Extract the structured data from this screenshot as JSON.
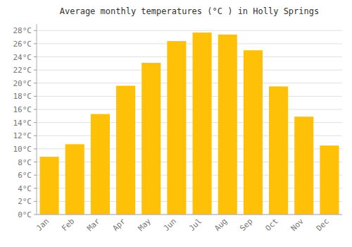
{
  "chart_data": {
    "type": "bar",
    "title": "Average monthly temperatures (°C ) in Holly Springs",
    "categories": [
      "Jan",
      "Feb",
      "Mar",
      "Apr",
      "May",
      "Jun",
      "Jul",
      "Aug",
      "Sep",
      "Oct",
      "Nov",
      "Dec"
    ],
    "values": [
      8.8,
      10.7,
      15.3,
      19.6,
      23.1,
      26.4,
      27.7,
      27.4,
      25.0,
      19.5,
      14.9,
      10.5
    ],
    "color": "#FFC107",
    "ylim": [
      0,
      29
    ],
    "yticks": [
      {
        "value": 0,
        "label": "0°C"
      },
      {
        "value": 2,
        "label": "2°C"
      },
      {
        "value": 4,
        "label": "4°C"
      },
      {
        "value": 6,
        "label": "6°C"
      },
      {
        "value": 8,
        "label": "8°C"
      },
      {
        "value": 10,
        "label": "10°C"
      },
      {
        "value": 12,
        "label": "12°C"
      },
      {
        "value": 14,
        "label": "14°C"
      },
      {
        "value": 16,
        "label": "16°C"
      },
      {
        "value": 18,
        "label": "18°C"
      },
      {
        "value": 20,
        "label": "20°C"
      },
      {
        "value": 22,
        "label": "22°C"
      },
      {
        "value": 24,
        "label": "24°C"
      },
      {
        "value": 26,
        "label": "26°C"
      },
      {
        "value": 28,
        "label": "28°C"
      }
    ],
    "grid": true
  }
}
